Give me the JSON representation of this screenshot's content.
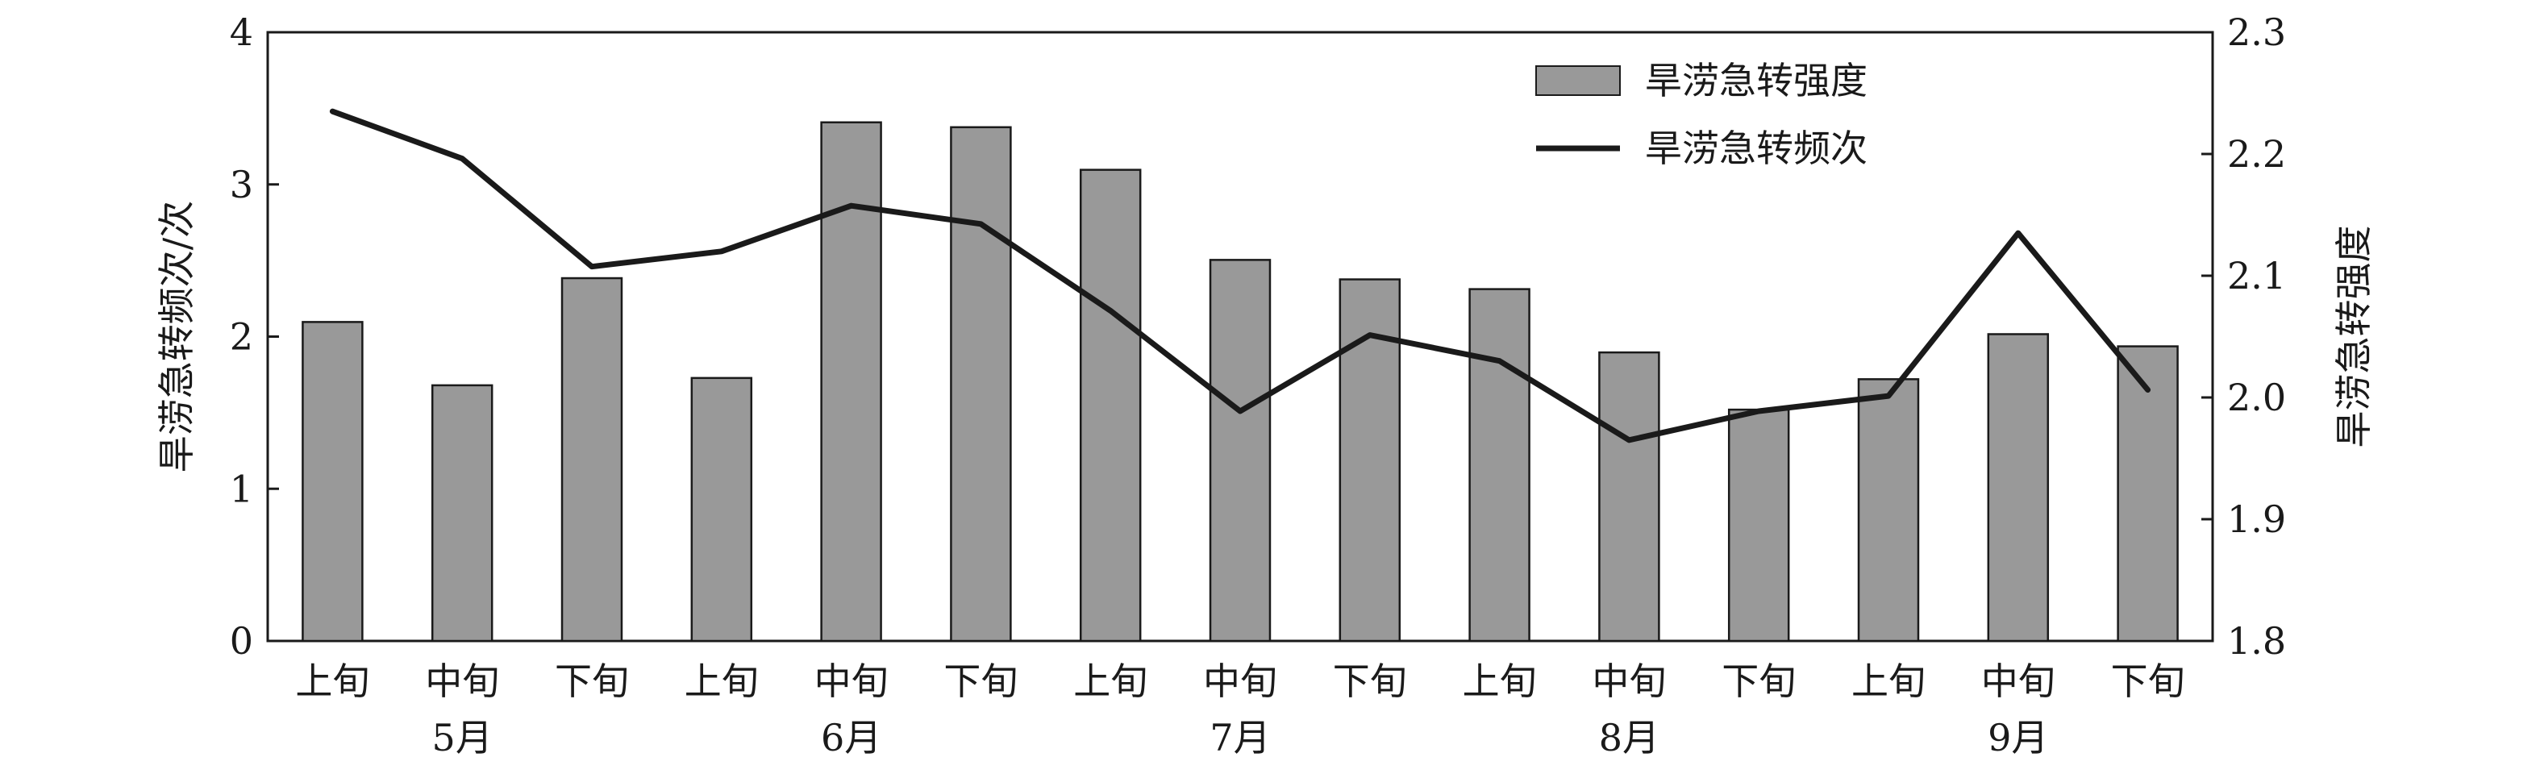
{
  "chart_data": {
    "type": "bar+line",
    "categories": [
      "上旬",
      "中旬",
      "下旬",
      "上旬",
      "中旬",
      "下旬",
      "上旬",
      "中旬",
      "下旬",
      "上旬",
      "中旬",
      "下旬",
      "上旬",
      "中旬",
      "下旬"
    ],
    "months": [
      "5月",
      "6月",
      "7月",
      "8月",
      "9月"
    ],
    "series": [
      {
        "name": "旱涝急转强度",
        "type": "bar",
        "axis": "right",
        "color": "#999999",
        "values": [
          2.062,
          2.01,
          2.098,
          2.016,
          2.226,
          2.222,
          2.187,
          2.113,
          2.097,
          2.089,
          2.037,
          1.99,
          2.015,
          2.052,
          2.042
        ]
      },
      {
        "name": "旱涝急转频次",
        "type": "line",
        "axis": "left",
        "color": "#1a1a1a",
        "values": [
          3.48,
          3.17,
          2.46,
          2.56,
          2.86,
          2.74,
          2.17,
          1.51,
          2.01,
          1.84,
          1.32,
          1.51,
          1.61,
          2.68,
          1.65
        ]
      }
    ],
    "ylabel": "旱涝急转频次/次",
    "ylabel_right": "旱涝急转强度",
    "ylim": [
      0,
      4
    ],
    "ylim_right": [
      1.8,
      2.3
    ],
    "yticks": [
      "0",
      "1",
      "2",
      "3",
      "4"
    ],
    "yticks_right": [
      "1.8",
      "1.9",
      "2.0",
      "2.1",
      "2.2",
      "2.3"
    ],
    "legend_position": "top-right",
    "grid": false
  }
}
